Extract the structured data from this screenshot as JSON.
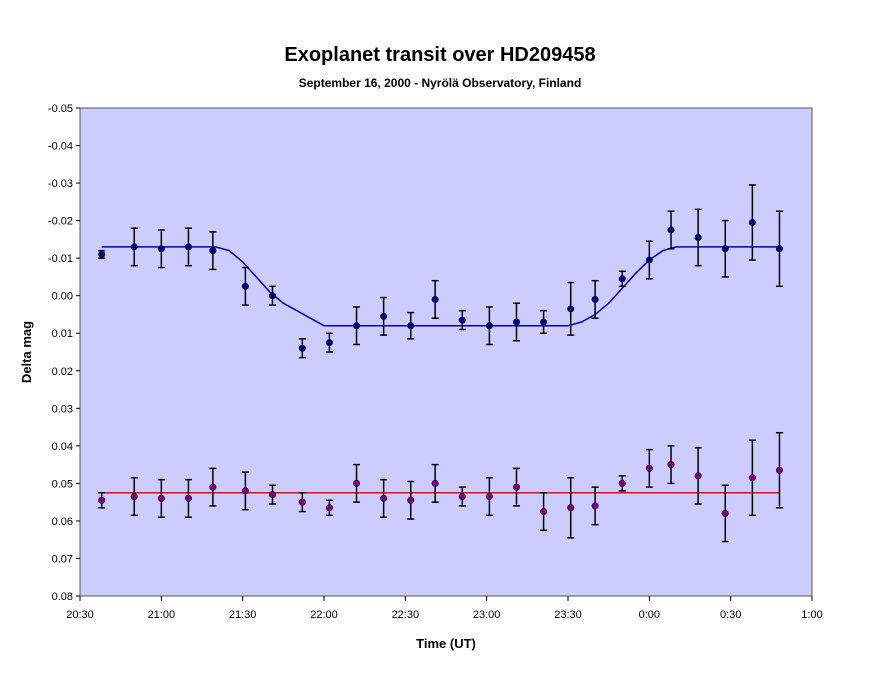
{
  "chart_data": {
    "type": "scatter",
    "title": "Exoplanet transit over HD209458",
    "subtitle": "September 16, 2000 - Nyrölä Observatory, Finland",
    "xlabel": "Time (UT)",
    "ylabel": "Delta mag",
    "x_ticks": [
      "20:30",
      "21:00",
      "21:30",
      "22:00",
      "22:30",
      "23:00",
      "23:30",
      "0:00",
      "0:30",
      "1:00"
    ],
    "y_ticks": [
      "-0.05",
      "-0.04",
      "-0.03",
      "-0.02",
      "-0.01",
      "0.00",
      "0.01",
      "0.02",
      "0.03",
      "0.04",
      "0.05",
      "0.06",
      "0.07",
      "0.08"
    ],
    "xlim": [
      "20:30",
      "1:00"
    ],
    "ylim": [
      -0.05,
      0.08
    ],
    "y_inverted": true,
    "grid": false,
    "legend": "none",
    "plot_background": "#ccccff",
    "series": [
      {
        "color": "#000080",
        "x": [
          "20:38",
          "20:50",
          "21:00",
          "21:10",
          "21:19",
          "21:31",
          "21:41",
          "21:52",
          "22:02",
          "22:12",
          "22:22",
          "22:32",
          "22:41",
          "22:51",
          "23:01",
          "23:11",
          "23:21",
          "23:31",
          "23:40",
          "23:50",
          "24:00",
          "24:08",
          "24:18",
          "24:28",
          "24:38",
          "24:48"
        ],
        "y": [
          -0.011,
          -0.013,
          -0.0125,
          -0.013,
          -0.012,
          -0.0025,
          0.0,
          0.014,
          0.0125,
          0.008,
          0.0055,
          0.008,
          0.001,
          0.0065,
          0.008,
          0.007,
          0.007,
          0.0035,
          0.001,
          -0.0045,
          -0.0095,
          -0.0175,
          -0.0155,
          -0.0125,
          -0.0195,
          -0.0125
        ],
        "err": [
          0.001,
          0.005,
          0.005,
          0.005,
          0.005,
          0.005,
          0.0025,
          0.0025,
          0.0025,
          0.005,
          0.005,
          0.0035,
          0.005,
          0.0025,
          0.005,
          0.005,
          0.003,
          0.007,
          0.005,
          0.002,
          0.005,
          0.005,
          0.0075,
          0.0075,
          0.01,
          0.01
        ]
      },
      {
        "color": "#800080",
        "x": [
          "20:38",
          "20:50",
          "21:00",
          "21:10",
          "21:19",
          "21:31",
          "21:41",
          "21:52",
          "22:02",
          "22:12",
          "22:22",
          "22:32",
          "22:41",
          "22:51",
          "23:01",
          "23:11",
          "23:21",
          "23:31",
          "23:40",
          "23:50",
          "24:00",
          "24:08",
          "24:18",
          "24:28",
          "24:38",
          "24:48"
        ],
        "y": [
          0.0545,
          0.0535,
          0.054,
          0.054,
          0.051,
          0.052,
          0.053,
          0.055,
          0.0565,
          0.05,
          0.054,
          0.0545,
          0.05,
          0.0535,
          0.0535,
          0.051,
          0.0575,
          0.0565,
          0.056,
          0.05,
          0.046,
          0.045,
          0.048,
          0.058,
          0.0485,
          0.0465
        ],
        "err": [
          0.002,
          0.005,
          0.005,
          0.005,
          0.005,
          0.005,
          0.0025,
          0.0025,
          0.002,
          0.005,
          0.005,
          0.005,
          0.005,
          0.0025,
          0.005,
          0.005,
          0.005,
          0.008,
          0.005,
          0.002,
          0.005,
          0.005,
          0.0075,
          0.0075,
          0.01,
          0.01
        ]
      }
    ],
    "fit_lines": [
      {
        "color": "#0000c0",
        "x": [
          "20:38",
          "21:20",
          "21:25",
          "21:30",
          "21:35",
          "21:40",
          "21:45",
          "21:50",
          "21:55",
          "22:00",
          "23:30",
          "23:35",
          "23:40",
          "23:45",
          "23:50",
          "23:55",
          "24:00",
          "24:05",
          "24:10",
          "24:48"
        ],
        "y": [
          -0.013,
          -0.013,
          -0.012,
          -0.009,
          -0.005,
          -0.001,
          0.002,
          0.004,
          0.006,
          0.008,
          0.008,
          0.007,
          0.005,
          0.002,
          -0.002,
          -0.006,
          -0.0095,
          -0.012,
          -0.013,
          -0.013
        ]
      },
      {
        "color": "#ff0000",
        "x": [
          "20:38",
          "24:48"
        ],
        "y": [
          0.0525,
          0.0525
        ]
      }
    ]
  }
}
